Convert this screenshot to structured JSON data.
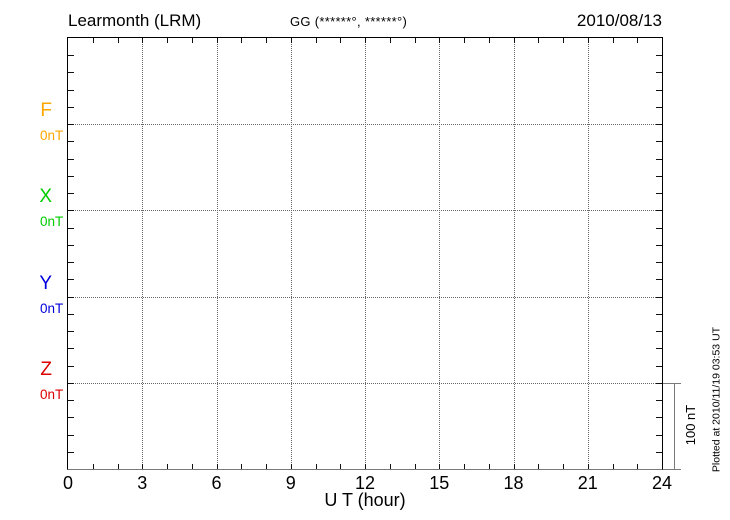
{
  "header": {
    "station": "Learmonth (LRM)",
    "coords": "GG (******°, ******°)",
    "date": "2010/08/13"
  },
  "xaxis": {
    "label": "U T (hour)"
  },
  "scalebar": {
    "label": "100 nT",
    "nT": 100
  },
  "footer": {
    "plotted_note": "Plotted at 2010/11/19 03:53 UT"
  },
  "colors": {
    "F": "#FFA500",
    "X": "#00CC00",
    "Y": "#0000DD",
    "Z": "#DD0000",
    "grid": "#666666",
    "axis": "#000000",
    "scalebar": "#7a7a7a"
  },
  "chart_data": {
    "type": "line",
    "title": "Learmonth (LRM) magnetogram",
    "date": "2010/08/13",
    "xlabel": "U T (hour)",
    "xlim": [
      0,
      24
    ],
    "x_major_ticks": [
      "0",
      "3",
      "6",
      "9",
      "12",
      "15",
      "18",
      "21",
      "24"
    ],
    "x_minor_tick_interval_hours": 1,
    "y_minor_divisions": 25,
    "grid": "dotted vertical lines every 3 hours; dotted horizontal baseline per component",
    "y_scale_bar_nT": 100,
    "series": [
      {
        "name": "F",
        "baseline_label": "0nT",
        "color": "#FFA500",
        "values": []
      },
      {
        "name": "X",
        "baseline_label": "0nT",
        "color": "#00CC00",
        "values": []
      },
      {
        "name": "Y",
        "baseline_label": "0nT",
        "color": "#0000DD",
        "values": []
      },
      {
        "name": "Z",
        "baseline_label": "0nT",
        "color": "#DD0000",
        "values": []
      }
    ],
    "note": "no data traces plotted (empty plot)"
  }
}
